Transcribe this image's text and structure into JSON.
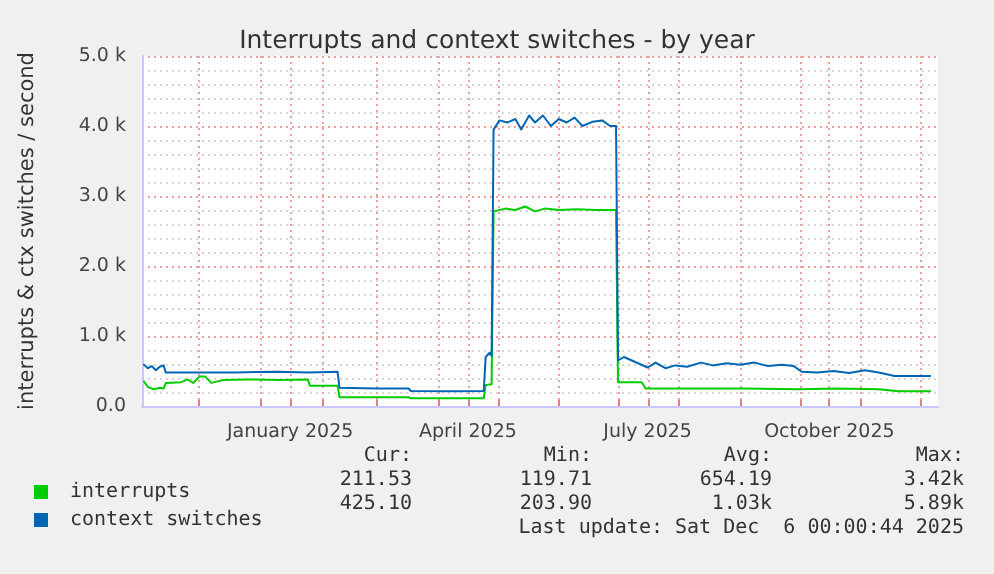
{
  "chart_data": {
    "type": "line",
    "title": "Interrupts and context switches - by year",
    "ylabel": "interrupts & ctx switches / second",
    "xlim": [
      "2024-11-02",
      "2025-12-10"
    ],
    "xticks": [
      {
        "value": "2024-12-01",
        "label": null
      },
      {
        "value": "2025-01-01",
        "label": null
      },
      {
        "value": "2025-01-16",
        "label": "January 2025"
      },
      {
        "value": "2025-02-01",
        "label": null
      },
      {
        "value": "2025-03-01",
        "label": null
      },
      {
        "value": "2025-04-01",
        "label": null
      },
      {
        "value": "2025-04-16",
        "label": "April 2025"
      },
      {
        "value": "2025-05-01",
        "label": null
      },
      {
        "value": "2025-06-01",
        "label": null
      },
      {
        "value": "2025-07-01",
        "label": null
      },
      {
        "value": "2025-07-16",
        "label": "July 2025"
      },
      {
        "value": "2025-08-01",
        "label": null
      },
      {
        "value": "2025-09-01",
        "label": null
      },
      {
        "value": "2025-10-01",
        "label": null
      },
      {
        "value": "2025-10-16",
        "label": "October 2025"
      },
      {
        "value": "2025-11-01",
        "label": null
      },
      {
        "value": "2025-12-01",
        "label": null
      }
    ],
    "ylim": [
      0,
      5000
    ],
    "yticks": [
      {
        "value": 0,
        "label": "0.0"
      },
      {
        "value": 1000,
        "label": "1.0 k"
      },
      {
        "value": 2000,
        "label": "2.0 k"
      },
      {
        "value": 3000,
        "label": "3.0 k"
      },
      {
        "value": 4000,
        "label": "4.0 k"
      },
      {
        "value": 5000,
        "label": "5.0 k"
      }
    ],
    "grid": true,
    "legend": "bottom left",
    "marker": "none",
    "line_style": "solid",
    "series": [
      {
        "name": "interrupts",
        "color": "#00cc00",
        "x": [
          "2024-11-03",
          "2024-11-05",
          "2024-11-08",
          "2024-11-11",
          "2024-11-13",
          "2024-11-14",
          "2024-11-22",
          "2024-11-25",
          "2024-11-28",
          "2024-12-01",
          "2024-12-04",
          "2024-12-07",
          "2024-12-13",
          "2024-12-25",
          "2025-01-10",
          "2025-01-25",
          "2025-01-26",
          "2025-02-09",
          "2025-02-10",
          "2025-03-17",
          "2025-03-18",
          "2025-04-24",
          "2025-04-25",
          "2025-04-28",
          "2025-04-29",
          "2025-05-05",
          "2025-05-10",
          "2025-05-15",
          "2025-05-20",
          "2025-05-25",
          "2025-06-01",
          "2025-06-10",
          "2025-06-20",
          "2025-06-30",
          "2025-07-01",
          "2025-07-13",
          "2025-07-15",
          "2025-08-01",
          "2025-09-01",
          "2025-10-01",
          "2025-10-20",
          "2025-11-10",
          "2025-11-20",
          "2025-12-06"
        ],
        "values": [
          350,
          270,
          240,
          260,
          250,
          330,
          340,
          380,
          330,
          420,
          420,
          330,
          370,
          380,
          370,
          380,
          290,
          290,
          125,
          125,
          110,
          110,
          300,
          310,
          2780,
          2820,
          2800,
          2850,
          2780,
          2820,
          2800,
          2810,
          2800,
          2800,
          340,
          340,
          250,
          250,
          250,
          240,
          250,
          240,
          210,
          210
        ]
      },
      {
        "name": "context switches",
        "color": "#0066b3",
        "x": [
          "2024-11-03",
          "2024-11-05",
          "2024-11-07",
          "2024-11-09",
          "2024-11-11",
          "2024-11-13",
          "2024-11-14",
          "2024-12-01",
          "2024-12-20",
          "2025-01-10",
          "2025-01-25",
          "2025-02-09",
          "2025-02-10",
          "2025-03-01",
          "2025-03-17",
          "2025-03-18",
          "2025-04-10",
          "2025-04-24",
          "2025-04-25",
          "2025-04-27",
          "2025-04-28",
          "2025-04-29",
          "2025-05-02",
          "2025-05-06",
          "2025-05-10",
          "2025-05-13",
          "2025-05-17",
          "2025-05-20",
          "2025-05-24",
          "2025-05-28",
          "2025-06-01",
          "2025-06-05",
          "2025-06-09",
          "2025-06-13",
          "2025-06-18",
          "2025-06-23",
          "2025-06-27",
          "2025-06-30",
          "2025-07-01",
          "2025-07-04",
          "2025-07-08",
          "2025-07-12",
          "2025-07-16",
          "2025-07-20",
          "2025-07-25",
          "2025-07-30",
          "2025-08-05",
          "2025-08-12",
          "2025-08-18",
          "2025-08-25",
          "2025-09-01",
          "2025-09-08",
          "2025-09-15",
          "2025-09-22",
          "2025-09-28",
          "2025-10-02",
          "2025-10-10",
          "2025-10-18",
          "2025-10-26",
          "2025-11-03",
          "2025-11-10",
          "2025-11-18",
          "2025-12-06"
        ],
        "values": [
          590,
          540,
          570,
          510,
          560,
          580,
          480,
          480,
          480,
          490,
          480,
          490,
          260,
          250,
          250,
          215,
          210,
          215,
          700,
          760,
          720,
          3950,
          4080,
          4050,
          4100,
          3950,
          4150,
          4050,
          4150,
          4000,
          4100,
          4050,
          4120,
          4000,
          4060,
          4080,
          4000,
          4000,
          650,
          700,
          650,
          600,
          550,
          620,
          540,
          580,
          560,
          620,
          580,
          610,
          590,
          620,
          570,
          590,
          570,
          490,
          480,
          500,
          470,
          510,
          480,
          430,
          430
        ]
      }
    ],
    "annotations": [
      "Cur:",
      "Min:",
      "Avg:",
      "Max:",
      "211.53",
      "119.71",
      "654.19",
      "3.42k",
      "425.10",
      "203.90",
      "1.03k",
      "5.89k",
      "Last update: Sat Dec  6 00:00:44 2025"
    ]
  }
}
